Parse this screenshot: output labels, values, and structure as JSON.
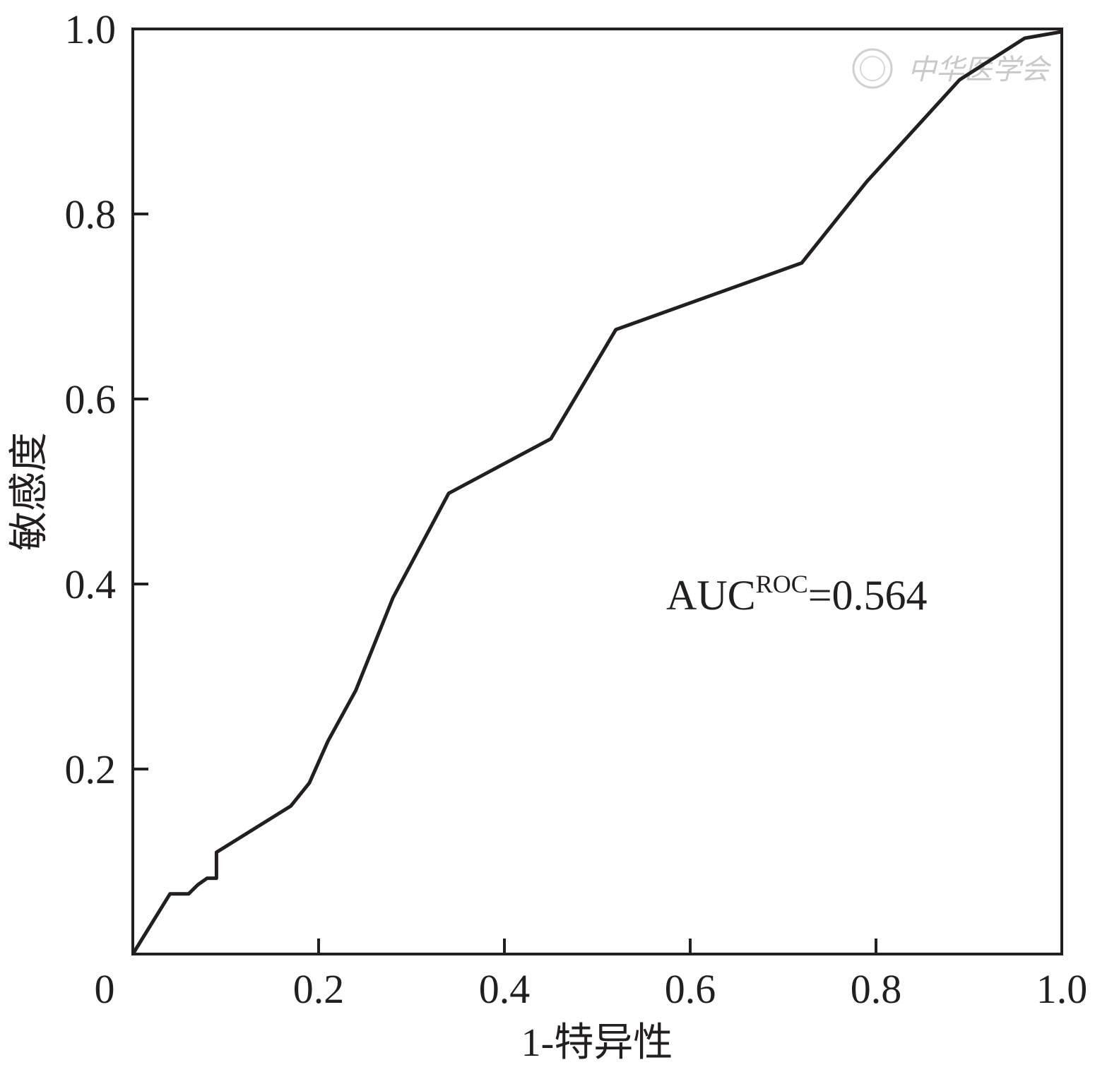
{
  "chart_data": {
    "type": "line",
    "title": "",
    "xlabel": "1-特异性",
    "ylabel": "敏感度",
    "xlim": [
      0,
      1.0
    ],
    "ylim": [
      0,
      1.0
    ],
    "grid": false,
    "x_ticks": [
      0,
      0.2,
      0.4,
      0.6,
      0.8,
      1.0
    ],
    "x_tick_labels": [
      "0",
      "0.2",
      "0.4",
      "0.6",
      "0.8",
      "1.0"
    ],
    "y_ticks": [
      0.2,
      0.4,
      0.6,
      0.8,
      1.0
    ],
    "y_tick_labels": [
      "0.2",
      "0.4",
      "0.6",
      "0.8",
      "1.0"
    ],
    "annotation": {
      "main": "AUC",
      "superscript": "ROC",
      "suffix": "=0.564"
    },
    "watermark": {
      "text": "中华医学会"
    },
    "series": [
      {
        "color": "#231f20",
        "x": [
          0.0,
          0.04,
          0.06,
          0.07,
          0.08,
          0.09,
          0.09,
          0.17,
          0.19,
          0.21,
          0.24,
          0.28,
          0.34,
          0.45,
          0.52,
          0.72,
          0.79,
          0.84,
          0.89,
          0.96,
          1.0
        ],
        "y": [
          0.0,
          0.065,
          0.065,
          0.075,
          0.082,
          0.082,
          0.11,
          0.16,
          0.185,
          0.23,
          0.285,
          0.385,
          0.498,
          0.557,
          0.675,
          0.747,
          0.835,
          0.89,
          0.945,
          0.99,
          0.997
        ]
      }
    ]
  }
}
